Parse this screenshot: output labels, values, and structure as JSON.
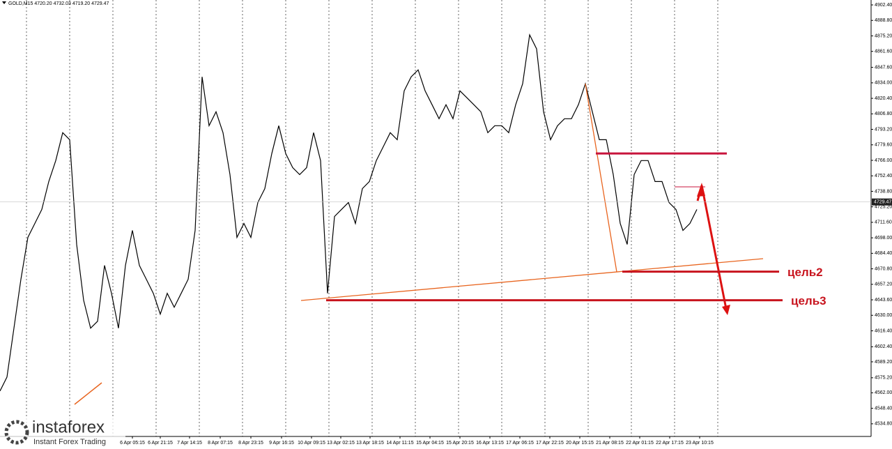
{
  "chart_data": {
    "type": "line",
    "title": "GOLD,M15  4720.20 4732.03 4719.20 4729.47",
    "series": [
      {
        "name": "GOLD,M15",
        "color": "#000000",
        "values": [
          4563.6,
          4575.8,
          4618.7,
          4661.6,
          4698.4,
          4710.6,
          4722.9,
          4747.4,
          4765.8,
          4790.3,
          4784.1,
          4692.2,
          4643.2,
          4618.7,
          4624.8,
          4673.8,
          4649.3,
          4618.7,
          4673.8,
          4704.5,
          4673.8,
          4661.6,
          4649.3,
          4631.0,
          4649.3,
          4637.1,
          4649.3,
          4661.6,
          4704.5,
          4839.3,
          4796.4,
          4808.6,
          4790.3,
          4753.5,
          4698.4,
          4710.6,
          4698.4,
          4729.0,
          4741.2,
          4771.9,
          4796.4,
          4771.9,
          4759.6,
          4753.5,
          4759.6,
          4790.3,
          4765.8,
          4649.3,
          4716.7,
          4722.9,
          4729.0,
          4710.6,
          4741.2,
          4747.4,
          4765.8,
          4778.0,
          4790.3,
          4784.1,
          4827.0,
          4839.3,
          4845.4,
          4827.0,
          4814.8,
          4802.5,
          4814.8,
          4802.5,
          4827.0,
          4820.9,
          4814.8,
          4808.6,
          4790.3,
          4796.4,
          4796.4,
          4790.3,
          4814.8,
          4833.2,
          4876.1,
          4863.8,
          4808.6,
          4784.1,
          4796.4,
          4802.5,
          4802.5,
          4814.8,
          4833.2,
          4808.6,
          4784.1,
          4784.1,
          4753.5,
          4710.6,
          4692.2,
          4753.5,
          4765.8,
          4765.8,
          4747.4,
          4747.4,
          4729.0,
          4722.9,
          4704.5,
          4710.6,
          4722.9
        ]
      }
    ],
    "xlim": [
      0,
      125
    ],
    "ylim": [
      4523.7,
      4906.7
    ],
    "current_price": {
      "value": 4729.47,
      "label": "4729.47"
    },
    "yticks": [
      {
        "value": 4902.4,
        "label": "4902.40"
      },
      {
        "value": 4888.8,
        "label": "4888.80"
      },
      {
        "value": 4875.2,
        "label": "4875.20"
      },
      {
        "value": 4861.6,
        "label": "4861.60"
      },
      {
        "value": 4847.6,
        "label": "4847.60"
      },
      {
        "value": 4834,
        "label": "4834.00"
      },
      {
        "value": 4820.4,
        "label": "4820.40"
      },
      {
        "value": 4806.8,
        "label": "4806.80"
      },
      {
        "value": 4793.2,
        "label": "4793.20"
      },
      {
        "value": 4779.6,
        "label": "4779.60"
      },
      {
        "value": 4766,
        "label": "4766.00"
      },
      {
        "value": 4752.4,
        "label": "4752.40"
      },
      {
        "value": 4738.8,
        "label": "4738.80"
      },
      {
        "value": 4725.2,
        "label": "4725.20"
      },
      {
        "value": 4711.6,
        "label": "4711.60"
      },
      {
        "value": 4698,
        "label": "4698.00"
      },
      {
        "value": 4684.4,
        "label": "4684.40"
      },
      {
        "value": 4670.8,
        "label": "4670.80"
      },
      {
        "value": 4657.2,
        "label": "4657.20"
      },
      {
        "value": 4643.6,
        "label": "4643.60"
      },
      {
        "value": 4630,
        "label": "4630.00"
      },
      {
        "value": 4616.4,
        "label": "4616.40"
      },
      {
        "value": 4602.4,
        "label": "4602.40"
      },
      {
        "value": 4589.2,
        "label": "4589.20"
      },
      {
        "value": 4575.2,
        "label": "4575.20"
      },
      {
        "value": 4562,
        "label": "4562.00"
      },
      {
        "value": 4548.4,
        "label": "4548.40"
      },
      {
        "value": 4534.8,
        "label": "4534.80"
      }
    ],
    "xticks": [
      {
        "value": 19,
        "label": "6 Apr 05:15"
      },
      {
        "value": 23,
        "label": "6 Apr 21:15"
      },
      {
        "value": 27.2,
        "label": "7 Apr 14:15"
      },
      {
        "value": 31.6,
        "label": "8 Apr 07:15"
      },
      {
        "value": 36,
        "label": "8 Apr 23:15"
      },
      {
        "value": 40.4,
        "label": "9 Apr 16:15"
      },
      {
        "value": 44.7,
        "label": "10 Apr 09:15"
      },
      {
        "value": 48.9,
        "label": "13 Apr 02:15"
      },
      {
        "value": 53.1,
        "label": "13 Apr 18:15"
      },
      {
        "value": 57.4,
        "label": "14 Apr 11:15"
      },
      {
        "value": 61.7,
        "label": "15 Apr 04:15"
      },
      {
        "value": 66,
        "label": "15 Apr 20:15"
      },
      {
        "value": 70.3,
        "label": "16 Apr 13:15"
      },
      {
        "value": 74.6,
        "label": "17 Apr 06:15"
      },
      {
        "value": 78.9,
        "label": "17 Apr 22:15"
      },
      {
        "value": 83.2,
        "label": "20 Apr 15:15"
      },
      {
        "value": 87.5,
        "label": "21 Apr 08:15"
      },
      {
        "value": 91.8,
        "label": "22 Apr 01:15"
      },
      {
        "value": 96.1,
        "label": "22 Apr 17:15"
      },
      {
        "value": 100.4,
        "label": "23 Apr 10:15"
      }
    ],
    "levels": [
      {
        "value": 4772.0,
        "color": "#c8143c",
        "from": 85.5,
        "to": 104.3
      },
      {
        "value": 4668.3,
        "color": "#c8141e",
        "from": 89.3,
        "to": 111.8,
        "text": "цель2"
      },
      {
        "value": 4643.2,
        "color": "#c8141e",
        "from": 46.8,
        "to": 112.3,
        "text": "цель3"
      }
    ],
    "watermark": {
      "brand": "instaforex",
      "tagline": "Instant Forex Trading"
    }
  }
}
